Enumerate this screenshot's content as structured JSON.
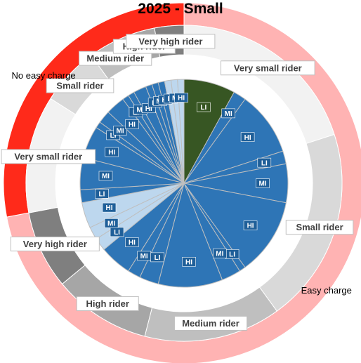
{
  "chart_data": {
    "type": "sunburst",
    "title": "2025 - Small",
    "outer": [
      {
        "label": "Easy charge",
        "value": 72,
        "color": "#ffb3b3"
      },
      {
        "label": "No easy charge",
        "value": 28,
        "color": "#ff2a1a"
      }
    ],
    "middle": [
      {
        "label": "Very small rider",
        "value": 20,
        "color": "#f2f2f2"
      },
      {
        "label": "Small rider",
        "value": 20,
        "color": "#d9d9d9"
      },
      {
        "label": "Medium rider",
        "value": 14,
        "color": "#bfbfbf"
      },
      {
        "label": "High rider",
        "value": 10,
        "color": "#a6a6a6"
      },
      {
        "label": "Very high rider",
        "value": 8,
        "color": "#7f7f7f"
      },
      {
        "label": "Very small rider",
        "value": 12,
        "color": "#f2f2f2"
      },
      {
        "label": "Small rider",
        "value": 6,
        "color": "#d9d9d9"
      },
      {
        "label": "Medium rider",
        "value": 4,
        "color": "#bfbfbf"
      },
      {
        "label": "High rider",
        "value": 3,
        "color": "#a6a6a6"
      },
      {
        "label": "Very high rider",
        "value": 3,
        "color": "#7f7f7f"
      }
    ],
    "inner": [
      {
        "label": "LI",
        "value": 8,
        "color": "#375623"
      },
      {
        "label": "MI",
        "value": 2,
        "color": "#2e75b6"
      },
      {
        "label": "HI",
        "value": 10,
        "color": "#2e75b6"
      },
      {
        "label": "LI",
        "value": 2,
        "color": "#2e75b6"
      },
      {
        "label": "MI",
        "value": 6,
        "color": "#2e75b6"
      },
      {
        "label": "HI",
        "value": 12,
        "color": "#2e75b6"
      },
      {
        "label": "LI",
        "value": 1,
        "color": "#2e75b6"
      },
      {
        "label": "MI",
        "value": 3,
        "color": "#2e75b6"
      },
      {
        "label": "HI",
        "value": 10,
        "color": "#2e75b6"
      },
      {
        "label": "LI",
        "value": 3,
        "color": "#2e75b6"
      },
      {
        "label": "MI",
        "value": 2,
        "color": "#2e75b6"
      },
      {
        "label": "HI",
        "value": 5,
        "color": "#2e75b6"
      },
      {
        "label": "LI",
        "value": 2,
        "color": "#bdd7ee"
      },
      {
        "label": "MI",
        "value": 2,
        "color": "#bdd7ee"
      },
      {
        "label": "HI",
        "value": 4,
        "color": "#bdd7ee"
      },
      {
        "label": "LI",
        "value": 2,
        "color": "#2e75b6"
      },
      {
        "label": "MI",
        "value": 5,
        "color": "#2e75b6"
      },
      {
        "label": "HI",
        "value": 5,
        "color": "#2e75b6"
      },
      {
        "label": "LI",
        "value": 1,
        "color": "#2e75b6"
      },
      {
        "label": "MI",
        "value": 2,
        "color": "#2e75b6"
      },
      {
        "label": "HI",
        "value": 3,
        "color": "#2e75b6"
      },
      {
        "label": "LI",
        "value": 1,
        "color": "#2e75b6"
      },
      {
        "label": "MI",
        "value": 1,
        "color": "#2e75b6"
      },
      {
        "label": "HI",
        "value": 2,
        "color": "#2e75b6"
      },
      {
        "label": "LI",
        "value": 1,
        "color": "#2e75b6"
      },
      {
        "label": "MI",
        "value": 1,
        "color": "#2e75b6"
      },
      {
        "label": "HI",
        "value": 1,
        "color": "#2e75b6"
      },
      {
        "label": "LI",
        "value": 1,
        "color": "#bdd7ee"
      },
      {
        "label": "MI",
        "value": 1,
        "color": "#bdd7ee"
      },
      {
        "label": "HI",
        "value": 1,
        "color": "#bdd7ee"
      }
    ]
  }
}
